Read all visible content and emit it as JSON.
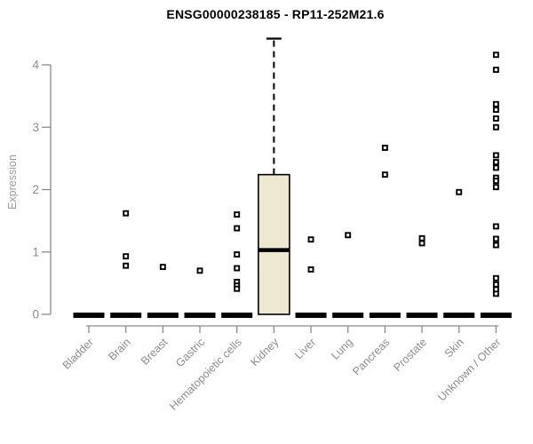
{
  "chart_data": {
    "type": "boxplot",
    "title": "ENSG00000238185 - RP11-252M21.6",
    "ylabel": "Expression",
    "xlabel": "",
    "ylim": [
      0,
      4.5
    ],
    "yticks": [
      0,
      1,
      2,
      3,
      4
    ],
    "grid": false,
    "legend": "none",
    "colors": {
      "box_fill": "#EDE8CF",
      "box_stroke": "#000000",
      "median": "#000000",
      "collapsed_bar": "#000000",
      "axis": "#8b8b8b",
      "tick_label": "#8b8b8b",
      "title": "#000000",
      "point_stroke": "#000000",
      "point_fill": "#ffffff"
    },
    "categories": [
      "Bladder",
      "Brain",
      "Breast",
      "Gastric",
      "Hematopoietic cells",
      "Kidney",
      "Liver",
      "Lung",
      "Pancreas",
      "Prostate",
      "Skin",
      "Unknown / Other"
    ],
    "series": [
      {
        "category": "Bladder",
        "box": {
          "q1": 0,
          "median": 0,
          "q3": 0,
          "whisker_low": 0,
          "whisker_high": 0
        },
        "points": []
      },
      {
        "category": "Brain",
        "box": {
          "q1": 0,
          "median": 0,
          "q3": 0,
          "whisker_low": 0,
          "whisker_high": 0
        },
        "points": [
          1.62,
          0.93,
          0.78
        ]
      },
      {
        "category": "Breast",
        "box": {
          "q1": 0,
          "median": 0,
          "q3": 0,
          "whisker_low": 0,
          "whisker_high": 0
        },
        "points": [
          0.76
        ]
      },
      {
        "category": "Gastric",
        "box": {
          "q1": 0,
          "median": 0,
          "q3": 0,
          "whisker_low": 0,
          "whisker_high": 0
        },
        "points": [
          0.7
        ]
      },
      {
        "category": "Hematopoietic cells",
        "box": {
          "q1": 0,
          "median": 0,
          "q3": 0,
          "whisker_low": 0,
          "whisker_high": 0
        },
        "points": [
          1.6,
          1.38,
          0.96,
          0.74,
          0.52,
          0.46,
          0.41
        ]
      },
      {
        "category": "Kidney",
        "box": {
          "q1": 0,
          "median": 1.03,
          "q3": 2.24,
          "whisker_low": 0,
          "whisker_high": 4.42
        },
        "points": []
      },
      {
        "category": "Liver",
        "box": {
          "q1": 0,
          "median": 0,
          "q3": 0,
          "whisker_low": 0,
          "whisker_high": 0
        },
        "points": [
          1.2,
          0.72
        ]
      },
      {
        "category": "Lung",
        "box": {
          "q1": 0,
          "median": 0,
          "q3": 0,
          "whisker_low": 0,
          "whisker_high": 0
        },
        "points": [
          1.27
        ]
      },
      {
        "category": "Pancreas",
        "box": {
          "q1": 0,
          "median": 0,
          "q3": 0,
          "whisker_low": 0,
          "whisker_high": 0
        },
        "points": [
          2.67,
          2.24
        ]
      },
      {
        "category": "Prostate",
        "box": {
          "q1": 0,
          "median": 0,
          "q3": 0,
          "whisker_low": 0,
          "whisker_high": 0
        },
        "points": [
          1.22,
          1.14
        ]
      },
      {
        "category": "Skin",
        "box": {
          "q1": 0,
          "median": 0,
          "q3": 0,
          "whisker_low": 0,
          "whisker_high": 0
        },
        "points": [
          1.96
        ]
      },
      {
        "category": "Unknown / Other",
        "box": {
          "q1": 0,
          "median": 0,
          "q3": 0,
          "whisker_low": 0,
          "whisker_high": 0
        },
        "points": [
          4.16,
          3.92,
          3.37,
          3.28,
          3.14,
          3.0,
          2.55,
          2.44,
          2.35,
          2.19,
          2.14,
          2.04,
          1.41,
          1.21,
          1.11,
          0.58,
          0.48,
          0.4,
          0.33
        ]
      }
    ]
  }
}
